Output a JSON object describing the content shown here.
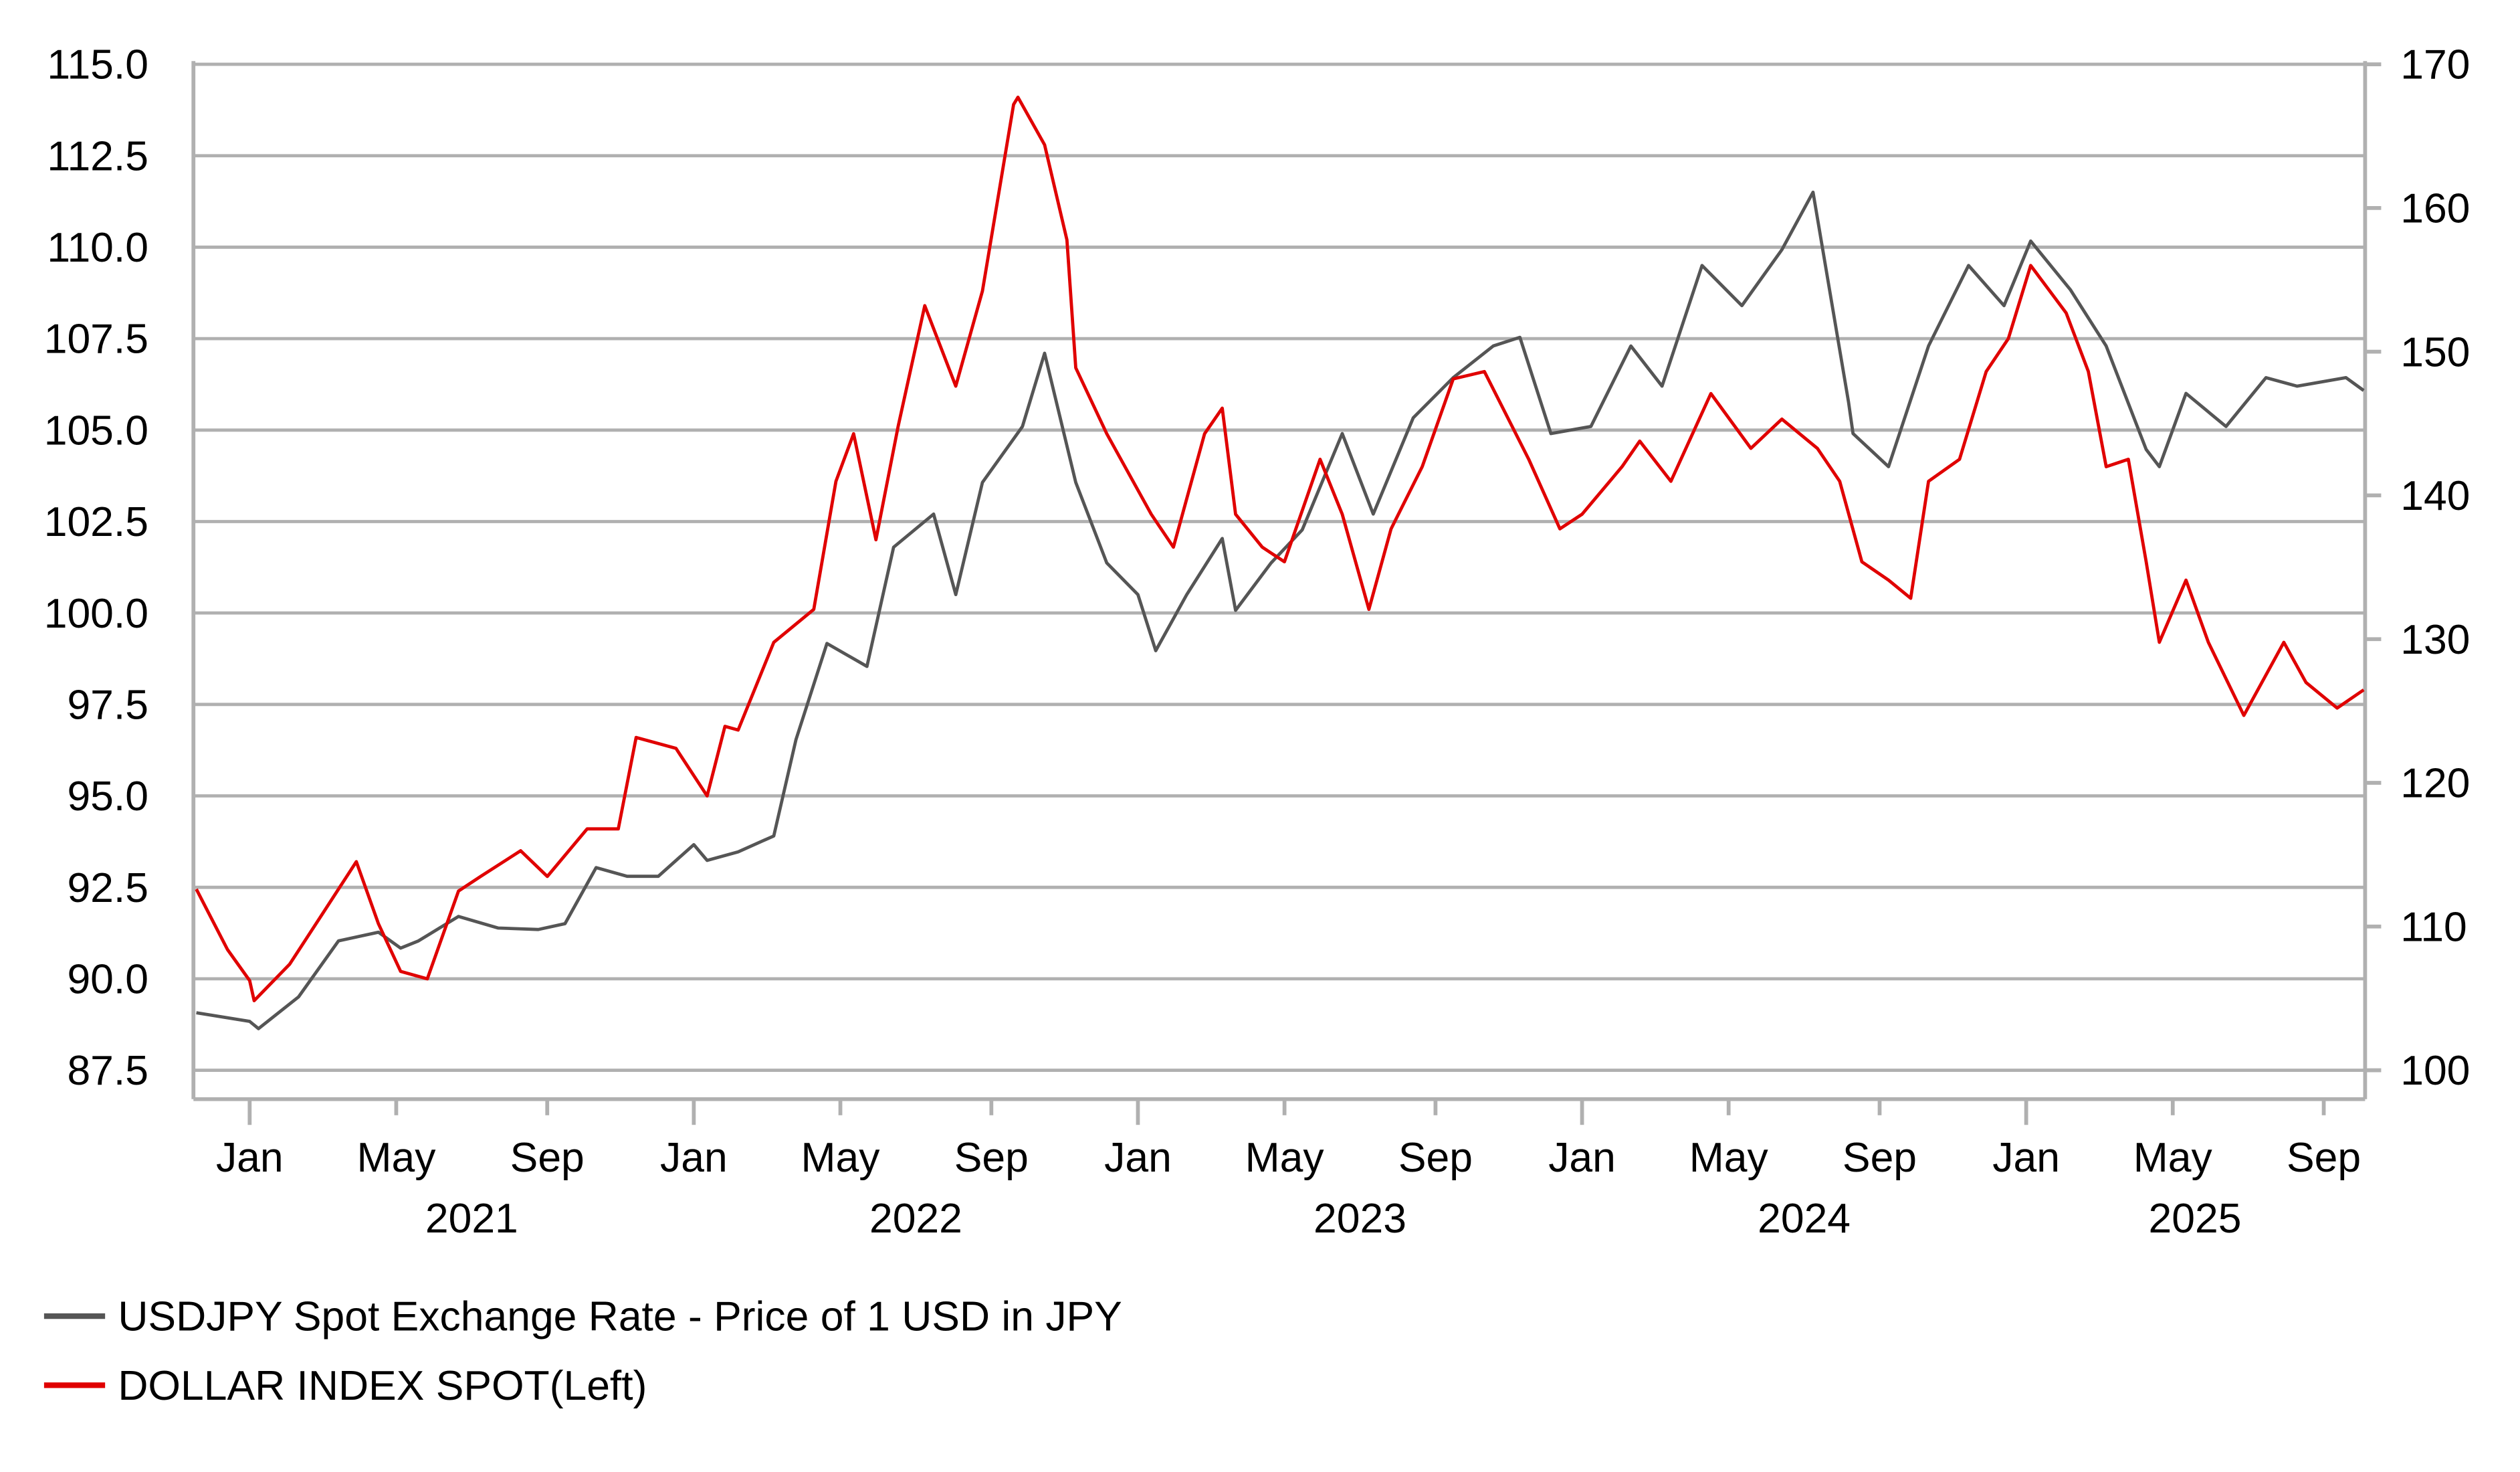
{
  "chart_data": {
    "type": "line",
    "title": "",
    "x_unit": "decimal year",
    "xlim": [
      2020.88,
      2025.77
    ],
    "left_axis": {
      "ylim": [
        87.5,
        115.0
      ],
      "ticks": [
        "87.5",
        "90.0",
        "92.5",
        "95.0",
        "97.5",
        "100.0",
        "102.5",
        "105.0",
        "107.5",
        "110.0",
        "112.5",
        "115.0"
      ],
      "tick_values": [
        87.5,
        90,
        92.5,
        95,
        97.5,
        100,
        102.5,
        105,
        107.5,
        110,
        112.5,
        115
      ]
    },
    "right_axis": {
      "ylim": [
        100,
        170
      ],
      "ticks": [
        "100",
        "110",
        "120",
        "130",
        "140",
        "150",
        "160",
        "170"
      ],
      "tick_values": [
        100,
        110,
        120,
        130,
        140,
        150,
        160,
        170
      ]
    },
    "x_ticks": [
      {
        "label": "Jan",
        "value": 2021.0,
        "major": true
      },
      {
        "label": "May",
        "value": 2021.33
      },
      {
        "label": "Sep",
        "value": 2021.67
      },
      {
        "label": "Jan",
        "value": 2022.0,
        "major": true
      },
      {
        "label": "May",
        "value": 2022.33
      },
      {
        "label": "Sep",
        "value": 2022.67
      },
      {
        "label": "Jan",
        "value": 2023.0,
        "major": true
      },
      {
        "label": "May",
        "value": 2023.33
      },
      {
        "label": "Sep",
        "value": 2023.67
      },
      {
        "label": "Jan",
        "value": 2024.0,
        "major": true
      },
      {
        "label": "May",
        "value": 2024.33
      },
      {
        "label": "Sep",
        "value": 2024.67
      },
      {
        "label": "Jan",
        "value": 2025.0,
        "major": true
      },
      {
        "label": "May",
        "value": 2025.33
      },
      {
        "label": "Sep",
        "value": 2025.67
      }
    ],
    "year_labels": [
      {
        "label": "2021",
        "value": 2021.5
      },
      {
        "label": "2022",
        "value": 2022.5
      },
      {
        "label": "2023",
        "value": 2023.5
      },
      {
        "label": "2024",
        "value": 2024.5
      },
      {
        "label": "2025",
        "value": 2025.38
      }
    ],
    "grid": true,
    "legend_placement": "bottom-left",
    "series": [
      {
        "name": "USDJPY Spot Exchange Rate - Price of 1 USD in JPY",
        "axis": "right",
        "color": "#555555",
        "points": [
          [
            2020.88,
            104.0
          ],
          [
            2021.0,
            103.4
          ],
          [
            2021.02,
            102.9
          ],
          [
            2021.11,
            105.1
          ],
          [
            2021.2,
            109.0
          ],
          [
            2021.29,
            109.6
          ],
          [
            2021.34,
            108.5
          ],
          [
            2021.38,
            109.0
          ],
          [
            2021.47,
            110.7
          ],
          [
            2021.56,
            109.9
          ],
          [
            2021.65,
            109.8
          ],
          [
            2021.71,
            110.2
          ],
          [
            2021.78,
            114.1
          ],
          [
            2021.85,
            113.5
          ],
          [
            2021.92,
            113.5
          ],
          [
            2022.0,
            115.7
          ],
          [
            2022.03,
            114.6
          ],
          [
            2022.1,
            115.2
          ],
          [
            2022.18,
            116.3
          ],
          [
            2022.23,
            123.0
          ],
          [
            2022.3,
            129.7
          ],
          [
            2022.39,
            128.1
          ],
          [
            2022.45,
            136.4
          ],
          [
            2022.54,
            138.7
          ],
          [
            2022.59,
            133.1
          ],
          [
            2022.65,
            140.9
          ],
          [
            2022.74,
            144.8
          ],
          [
            2022.79,
            149.9
          ],
          [
            2022.86,
            140.9
          ],
          [
            2022.93,
            135.3
          ],
          [
            2023.0,
            133.1
          ],
          [
            2023.04,
            129.2
          ],
          [
            2023.11,
            133.1
          ],
          [
            2023.19,
            137.0
          ],
          [
            2023.22,
            132.0
          ],
          [
            2023.3,
            135.3
          ],
          [
            2023.37,
            137.6
          ],
          [
            2023.46,
            144.3
          ],
          [
            2023.53,
            138.7
          ],
          [
            2023.62,
            145.4
          ],
          [
            2023.71,
            148.2
          ],
          [
            2023.8,
            150.4
          ],
          [
            2023.86,
            151.0
          ],
          [
            2023.93,
            144.3
          ],
          [
            2024.02,
            144.8
          ],
          [
            2024.11,
            150.4
          ],
          [
            2024.18,
            147.6
          ],
          [
            2024.36,
            153.2
          ],
          [
            2024.27,
            156.0
          ],
          [
            2024.45,
            157.1
          ],
          [
            2024.52,
            161.1
          ],
          [
            2024.6,
            146.5
          ],
          [
            2024.61,
            144.3
          ],
          [
            2024.69,
            142.0
          ],
          [
            2024.78,
            150.4
          ],
          [
            2024.87,
            156.0
          ],
          [
            2024.95,
            153.2
          ],
          [
            2025.01,
            157.7
          ],
          [
            2025.1,
            154.3
          ],
          [
            2025.18,
            150.4
          ],
          [
            2025.27,
            143.2
          ],
          [
            2025.3,
            142.0
          ],
          [
            2025.36,
            147.1
          ],
          [
            2025.45,
            144.8
          ],
          [
            2025.54,
            148.2
          ],
          [
            2025.61,
            147.6
          ],
          [
            2025.72,
            148.2
          ],
          [
            2025.76,
            147.3
          ]
        ]
      },
      {
        "name": "DOLLAR INDEX SPOT(Left)",
        "axis": "left",
        "color": "#e00000",
        "points": [
          [
            2020.88,
            92.45
          ],
          [
            2020.95,
            90.8
          ],
          [
            2021.0,
            89.95
          ],
          [
            2021.01,
            89.4
          ],
          [
            2021.09,
            90.4
          ],
          [
            2021.16,
            91.7
          ],
          [
            2021.24,
            93.2
          ],
          [
            2021.29,
            91.5
          ],
          [
            2021.34,
            90.2
          ],
          [
            2021.4,
            90.0
          ],
          [
            2021.47,
            92.4
          ],
          [
            2021.52,
            92.8
          ],
          [
            2021.61,
            93.5
          ],
          [
            2021.67,
            92.8
          ],
          [
            2021.76,
            94.1
          ],
          [
            2021.83,
            94.1
          ],
          [
            2021.87,
            96.6
          ],
          [
            2021.96,
            96.3
          ],
          [
            2022.03,
            95.0
          ],
          [
            2022.07,
            96.9
          ],
          [
            2022.1,
            96.8
          ],
          [
            2022.18,
            99.2
          ],
          [
            2022.27,
            100.1
          ],
          [
            2022.32,
            103.6
          ],
          [
            2022.36,
            104.9
          ],
          [
            2022.41,
            102.0
          ],
          [
            2022.46,
            105.1
          ],
          [
            2022.52,
            108.4
          ],
          [
            2022.59,
            106.2
          ],
          [
            2022.65,
            108.8
          ],
          [
            2022.72,
            113.9
          ],
          [
            2022.73,
            114.1
          ],
          [
            2022.79,
            112.8
          ],
          [
            2022.84,
            110.2
          ],
          [
            2022.86,
            106.7
          ],
          [
            2022.93,
            104.9
          ],
          [
            2023.03,
            102.7
          ],
          [
            2023.08,
            101.8
          ],
          [
            2023.15,
            104.9
          ],
          [
            2023.19,
            105.6
          ],
          [
            2023.22,
            102.7
          ],
          [
            2023.28,
            101.8
          ],
          [
            2023.33,
            101.4
          ],
          [
            2023.41,
            104.2
          ],
          [
            2023.46,
            102.7
          ],
          [
            2023.52,
            100.1
          ],
          [
            2023.57,
            102.3
          ],
          [
            2023.64,
            104.0
          ],
          [
            2023.71,
            106.4
          ],
          [
            2023.78,
            106.6
          ],
          [
            2023.88,
            104.2
          ],
          [
            2023.95,
            102.3
          ],
          [
            2024.0,
            102.7
          ],
          [
            2024.09,
            104.0
          ],
          [
            2024.13,
            104.7
          ],
          [
            2024.2,
            103.6
          ],
          [
            2024.29,
            106.0
          ],
          [
            2024.38,
            104.5
          ],
          [
            2024.45,
            105.3
          ],
          [
            2024.53,
            104.5
          ],
          [
            2024.58,
            103.6
          ],
          [
            2024.63,
            101.4
          ],
          [
            2024.69,
            100.9
          ],
          [
            2024.74,
            100.4
          ],
          [
            2024.78,
            103.6
          ],
          [
            2024.85,
            104.2
          ],
          [
            2024.91,
            106.6
          ],
          [
            2024.96,
            107.5
          ],
          [
            2025.01,
            109.5
          ],
          [
            2025.09,
            108.2
          ],
          [
            2025.14,
            106.6
          ],
          [
            2025.18,
            104.0
          ],
          [
            2025.23,
            104.2
          ],
          [
            2025.27,
            101.4
          ],
          [
            2025.3,
            99.2
          ],
          [
            2025.36,
            100.9
          ],
          [
            2025.41,
            99.2
          ],
          [
            2025.49,
            97.2
          ],
          [
            2025.58,
            99.2
          ],
          [
            2025.63,
            98.1
          ],
          [
            2025.7,
            97.4
          ],
          [
            2025.76,
            97.9
          ]
        ]
      }
    ]
  }
}
